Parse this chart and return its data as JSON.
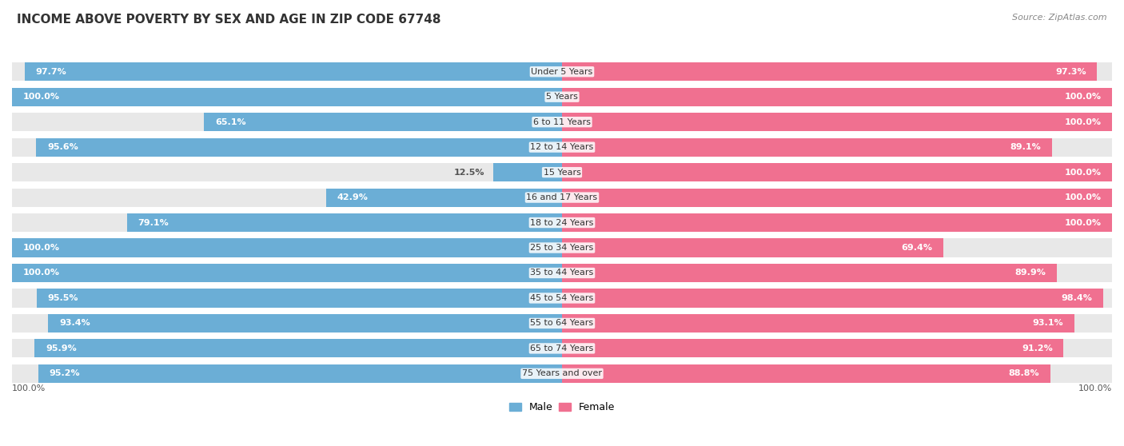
{
  "title": "INCOME ABOVE POVERTY BY SEX AND AGE IN ZIP CODE 67748",
  "source": "Source: ZipAtlas.com",
  "categories": [
    "Under 5 Years",
    "5 Years",
    "6 to 11 Years",
    "12 to 14 Years",
    "15 Years",
    "16 and 17 Years",
    "18 to 24 Years",
    "25 to 34 Years",
    "35 to 44 Years",
    "45 to 54 Years",
    "55 to 64 Years",
    "65 to 74 Years",
    "75 Years and over"
  ],
  "male_values": [
    97.7,
    100.0,
    65.1,
    95.6,
    12.5,
    42.9,
    79.1,
    100.0,
    100.0,
    95.5,
    93.4,
    95.9,
    95.2
  ],
  "female_values": [
    97.3,
    100.0,
    100.0,
    89.1,
    100.0,
    100.0,
    100.0,
    69.4,
    89.9,
    98.4,
    93.1,
    91.2,
    88.8
  ],
  "male_color": "#6baed6",
  "female_color": "#f07090",
  "bar_bg_color": "#e8e8e8",
  "male_label": "Male",
  "female_label": "Female",
  "title_fontsize": 11,
  "cat_fontsize": 8,
  "val_fontsize": 8,
  "source_fontsize": 8,
  "legend_fontsize": 9,
  "bottom_label": "100.0%"
}
